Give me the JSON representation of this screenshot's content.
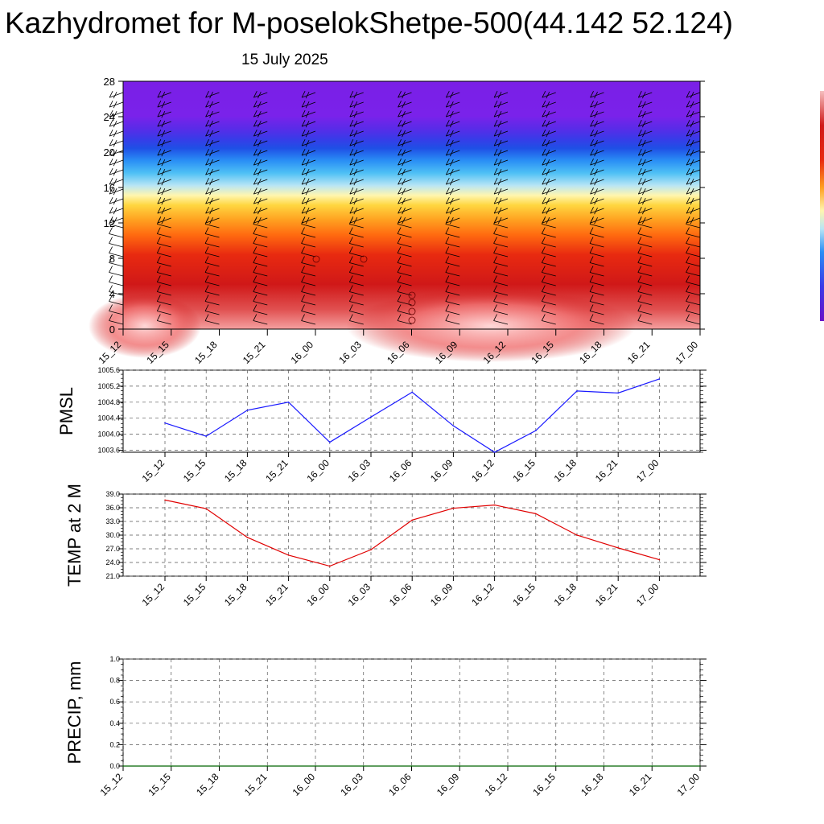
{
  "title": "Kazhydromet for M-poselokShetpe-500(44.142 52.124)",
  "subtitle": "15 July 2025",
  "time_labels": [
    "15_12",
    "15_15",
    "15_18",
    "15_21",
    "16_00",
    "16_03",
    "16_06",
    "16_09",
    "16_12",
    "16_15",
    "16_18",
    "16_21",
    "17_00"
  ],
  "colors": {
    "pmsl_line": "#1a1aff",
    "temp_line": "#e00000",
    "precip_line": "#006400"
  },
  "chart_data": [
    {
      "type": "heatmap",
      "title": "",
      "xlabel": "",
      "ylabel": "",
      "x": [
        "15_12",
        "15_15",
        "15_18",
        "15_21",
        "16_00",
        "16_03",
        "16_06",
        "16_09",
        "16_12",
        "16_15",
        "16_18",
        "16_21",
        "17_00"
      ],
      "yticks": [
        0,
        4,
        8,
        12,
        16,
        20,
        24,
        28
      ],
      "ylim": [
        0,
        28
      ],
      "colorbar": [
        "#7a1fe6",
        "#5a2be8",
        "#3a3ae8",
        "#2e5cf0",
        "#2a8ef5",
        "#4ec0f5",
        "#b7e5f5",
        "#fff6b0",
        "#ffd640",
        "#ffa020",
        "#ff6a10",
        "#e82a10",
        "#d01818",
        "#e05050",
        "#f5a0a0",
        "#ffe0e0"
      ],
      "description_levels": "purple at top (~24-28), blue band (~18-22), yellow (~12-13), red to pink near surface"
    },
    {
      "type": "line",
      "ylabel": "PMSL",
      "x": [
        "15_12",
        "15_15",
        "15_18",
        "15_21",
        "16_00",
        "16_03",
        "16_06",
        "16_09",
        "16_12",
        "16_15",
        "16_18",
        "16_21",
        "17_00"
      ],
      "yticks": [
        "1003.6",
        "1004.0",
        "1004.4",
        "1004.8",
        "1005.2",
        "1005.6"
      ],
      "ylim": [
        1003.55,
        1005.6
      ],
      "grid": true,
      "series": [
        {
          "values": [
            1004.28,
            1003.95,
            1004.6,
            1004.8,
            1003.8,
            1004.43,
            1005.05,
            1004.21,
            1003.54,
            1004.09,
            1005.08,
            1005.03,
            1005.38
          ]
        }
      ]
    },
    {
      "type": "line",
      "ylabel": "TEMP at 2 M",
      "x": [
        "15_12",
        "15_15",
        "15_18",
        "15_21",
        "16_00",
        "16_03",
        "16_06",
        "16_09",
        "16_12",
        "16_15",
        "16_18",
        "16_21",
        "17_00"
      ],
      "yticks": [
        "21.0",
        "24.0",
        "27.0",
        "30.0",
        "33.0",
        "36.0",
        "39.0"
      ],
      "ylim": [
        21.0,
        39.0
      ],
      "grid": true,
      "series": [
        {
          "values": [
            37.7,
            35.8,
            29.5,
            25.6,
            23.2,
            26.8,
            33.3,
            35.9,
            36.6,
            34.7,
            30.0,
            27.2,
            24.6
          ]
        }
      ]
    },
    {
      "type": "line",
      "ylabel": "PRECIP, mm",
      "x": [
        "15_12",
        "15_15",
        "15_18",
        "15_21",
        "16_00",
        "16_03",
        "16_06",
        "16_09",
        "16_12",
        "16_15",
        "16_18",
        "16_21",
        "17_00"
      ],
      "yticks": [
        "0.0",
        "0.2",
        "0.4",
        "0.6",
        "0.8",
        "1.0"
      ],
      "ylim": [
        0.0,
        1.0
      ],
      "grid": true,
      "series": [
        {
          "values": [
            0,
            0,
            0,
            0,
            0,
            0,
            0,
            0,
            0,
            0,
            0,
            0,
            0
          ]
        }
      ]
    }
  ]
}
